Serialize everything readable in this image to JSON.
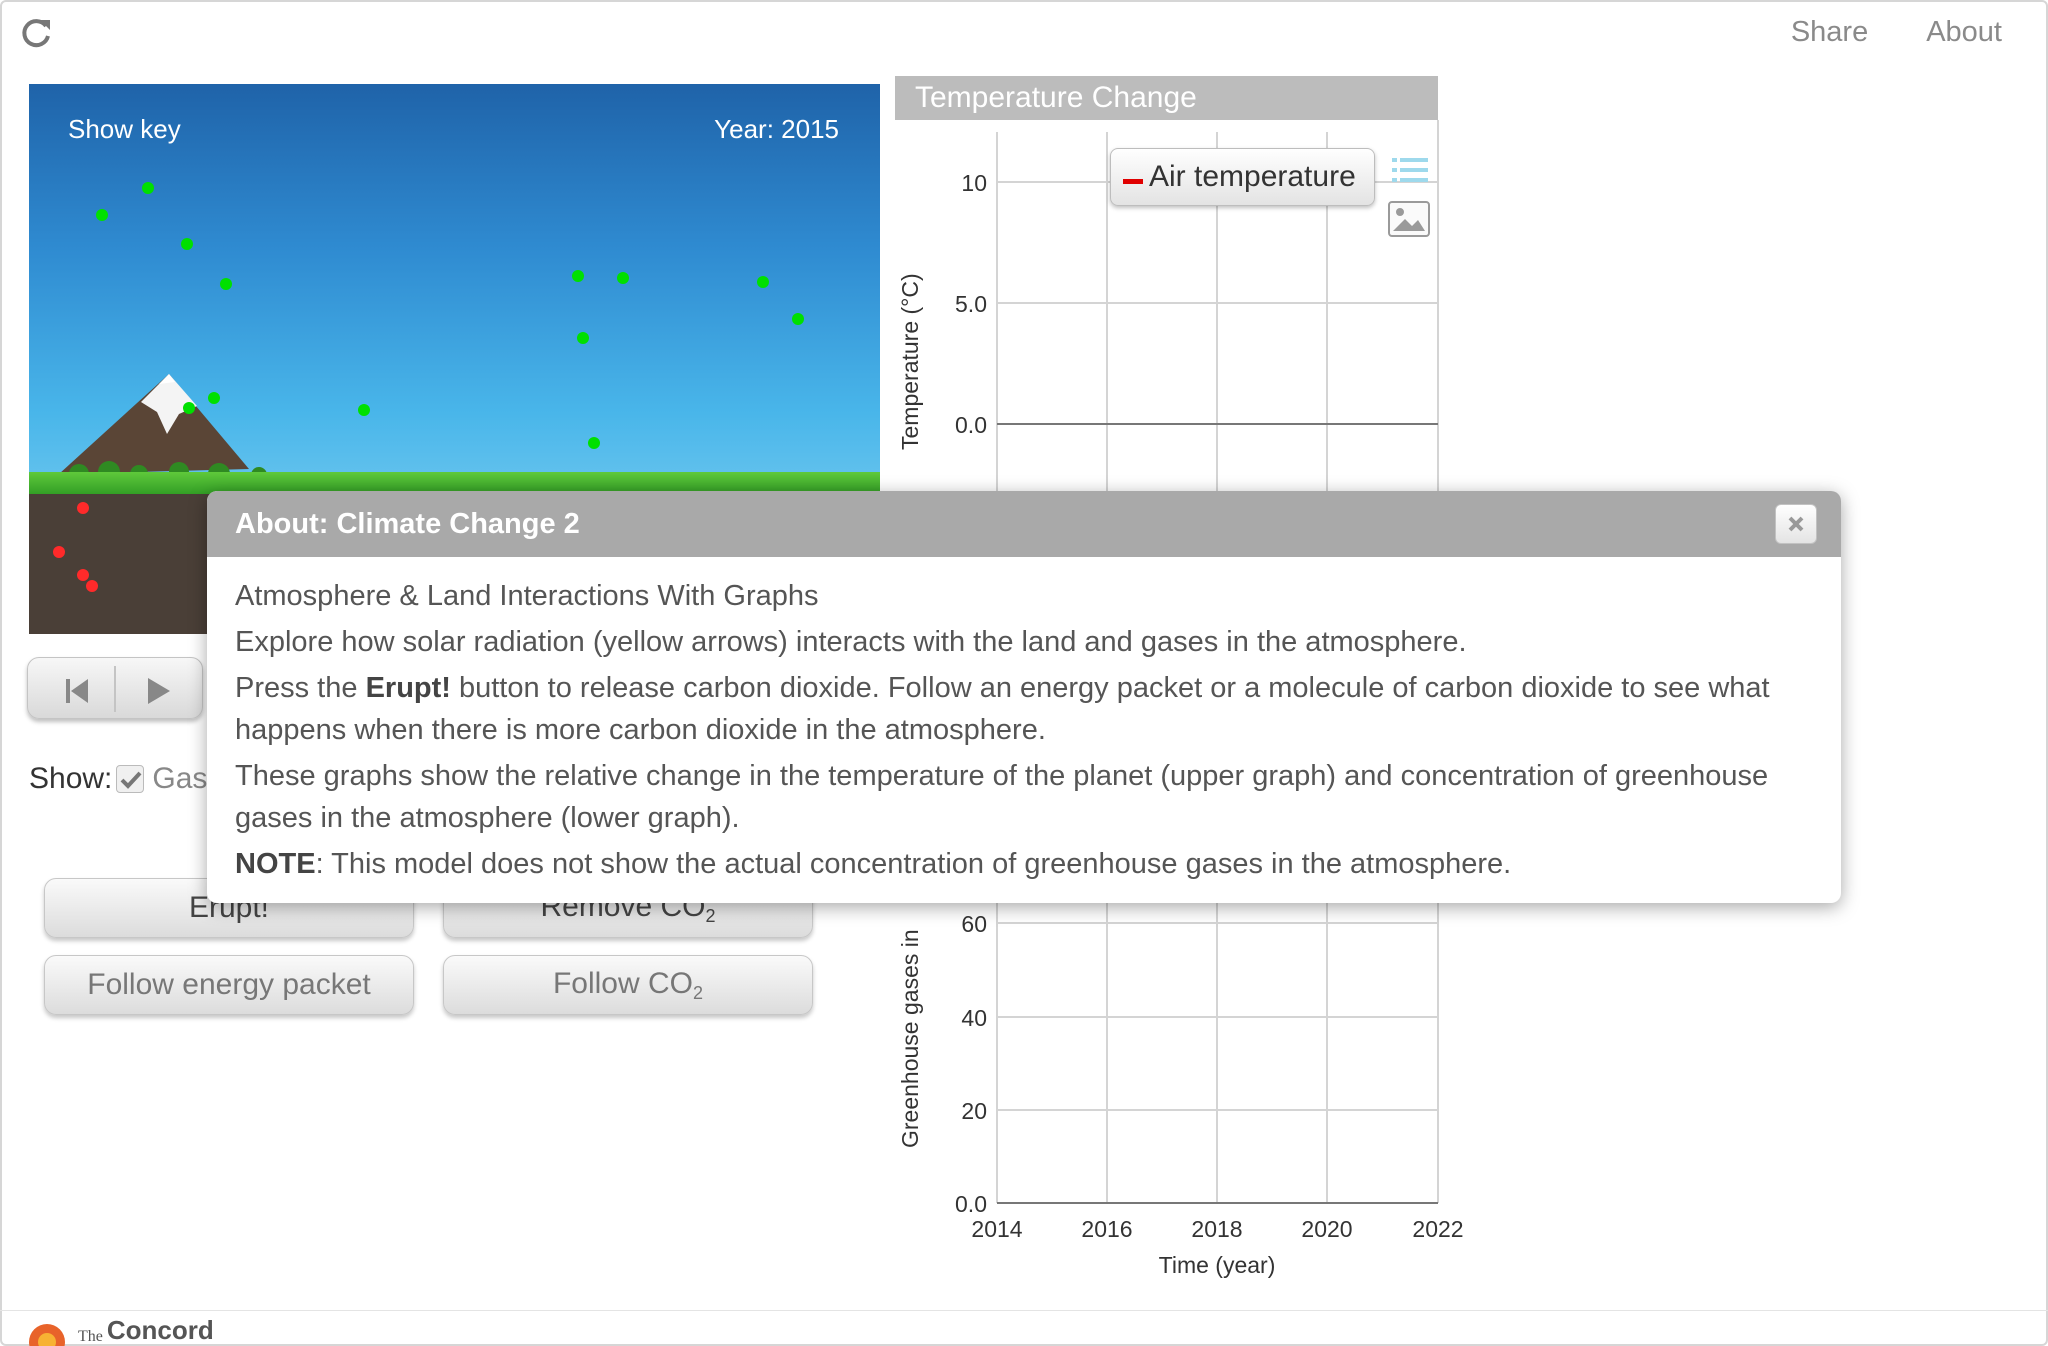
{
  "topbar": {
    "share": "Share",
    "about": "About"
  },
  "model": {
    "show_key": "Show key",
    "year_label": "Year: 2015"
  },
  "show": {
    "label": "Show:",
    "gases_label": "Gas",
    "gases_checked": true
  },
  "buttons": {
    "erupt": "Erupt!",
    "remove_co2": "Remove CO",
    "remove_co2_sub": "2",
    "follow_energy": "Follow energy packet",
    "follow_co2": "Follow CO",
    "follow_co2_sub": "2"
  },
  "graph_top": {
    "title": "Temperature Change",
    "ylabel": "Temperature (°C)",
    "yticks": [
      "10",
      "5.0",
      "0.0"
    ],
    "legend": "Air temperature",
    "legend_color": "#e00000"
  },
  "graph_bottom": {
    "ylabel": "Greenhouse gases in",
    "yticks": [
      "60",
      "40",
      "20",
      "0.0"
    ],
    "xticks": [
      "2014",
      "2016",
      "2018",
      "2020",
      "2022"
    ],
    "xlabel": "Time (year)"
  },
  "dialog": {
    "title": "About: Climate Change 2",
    "line1": "Atmosphere & Land Interactions With Graphs",
    "line2": "Explore how solar radiation (yellow arrows) interacts with the land and gases in the atmosphere.",
    "line3_pre": "Press the ",
    "line3_bold": "Erupt!",
    "line3_post": " button to release carbon dioxide. Follow an energy packet or a molecule of carbon dioxide to see what happens when there is more carbon dioxide in the atmosphere.",
    "line4": "These graphs show the relative change in the temperature of the planet (upper graph) and concentration of greenhouse gases in the atmosphere (lower graph).",
    "line5_bold": "NOTE",
    "line5_post": ": This model does not show the actual concentration of greenhouse gases in the atmosphere."
  },
  "footer": {
    "the": "The",
    "name": "Concord"
  },
  "colors": {
    "co2_molecule": "#00e000",
    "land_carbon": "#ff2a2a",
    "sky_top": "#1f63a9",
    "sky_bottom": "#a8def4"
  }
}
